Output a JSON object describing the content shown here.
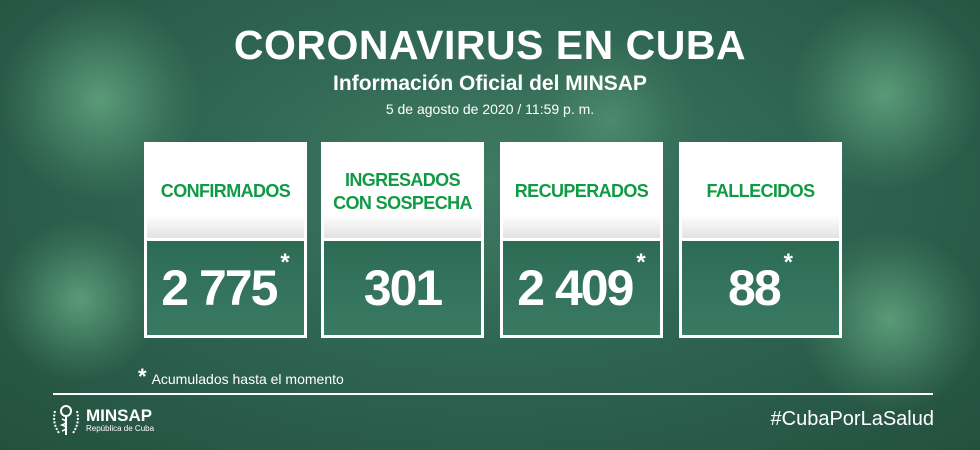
{
  "header": {
    "title": "CORONAVIRUS EN CUBA",
    "subtitle": "Información Oficial del MINSAP",
    "date": "5 de agosto de 2020 / 11:59 p. m."
  },
  "cards": [
    {
      "label": "CONFIRMADOS",
      "value": "2 775",
      "asterisk": "*"
    },
    {
      "label_line1": "INGRESADOS",
      "label_line2": "CON SOSPECHA",
      "value": "301"
    },
    {
      "label": "RECUPERADOS",
      "value": "2 409",
      "asterisk": "*"
    },
    {
      "label": "FALLECIDOS",
      "value": "88",
      "asterisk": "*"
    }
  ],
  "footnote": {
    "asterisk": "*",
    "text": "Acumulados hasta el momento"
  },
  "footer": {
    "logo_name": "MINSAP",
    "logo_sub": "República de Cuba",
    "hashtag": "#CubaPorLaSalud"
  },
  "colors": {
    "label_green": "#119a45",
    "background": "#2f6553"
  }
}
